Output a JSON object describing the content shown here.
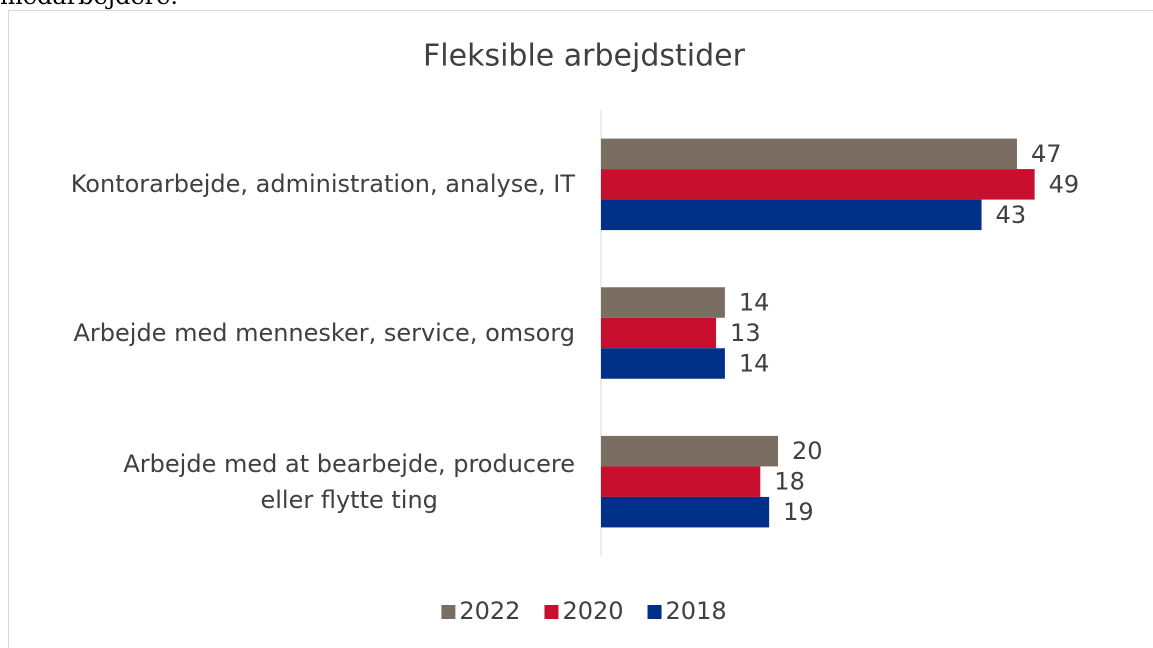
{
  "text_above": "medarbejdere.",
  "chart_data": {
    "type": "bar",
    "orientation": "horizontal",
    "title": "Fleksible arbejdstider",
    "categories": [
      "Kontorarbejde, administration, analyse, IT",
      "Arbejde med mennesker, service, omsorg",
      "Arbejde med at bearbejde, producere\neller flytte ting"
    ],
    "series": [
      {
        "name": "2022",
        "color": "#7a6e62",
        "values": [
          47,
          14,
          20
        ]
      },
      {
        "name": "2020",
        "color": "#c8102e",
        "values": [
          49,
          13,
          18
        ]
      },
      {
        "name": "2018",
        "color": "#003087",
        "values": [
          43,
          14,
          19
        ]
      }
    ],
    "xlim": [
      0,
      60
    ],
    "legend": "bottom",
    "grid": false
  }
}
